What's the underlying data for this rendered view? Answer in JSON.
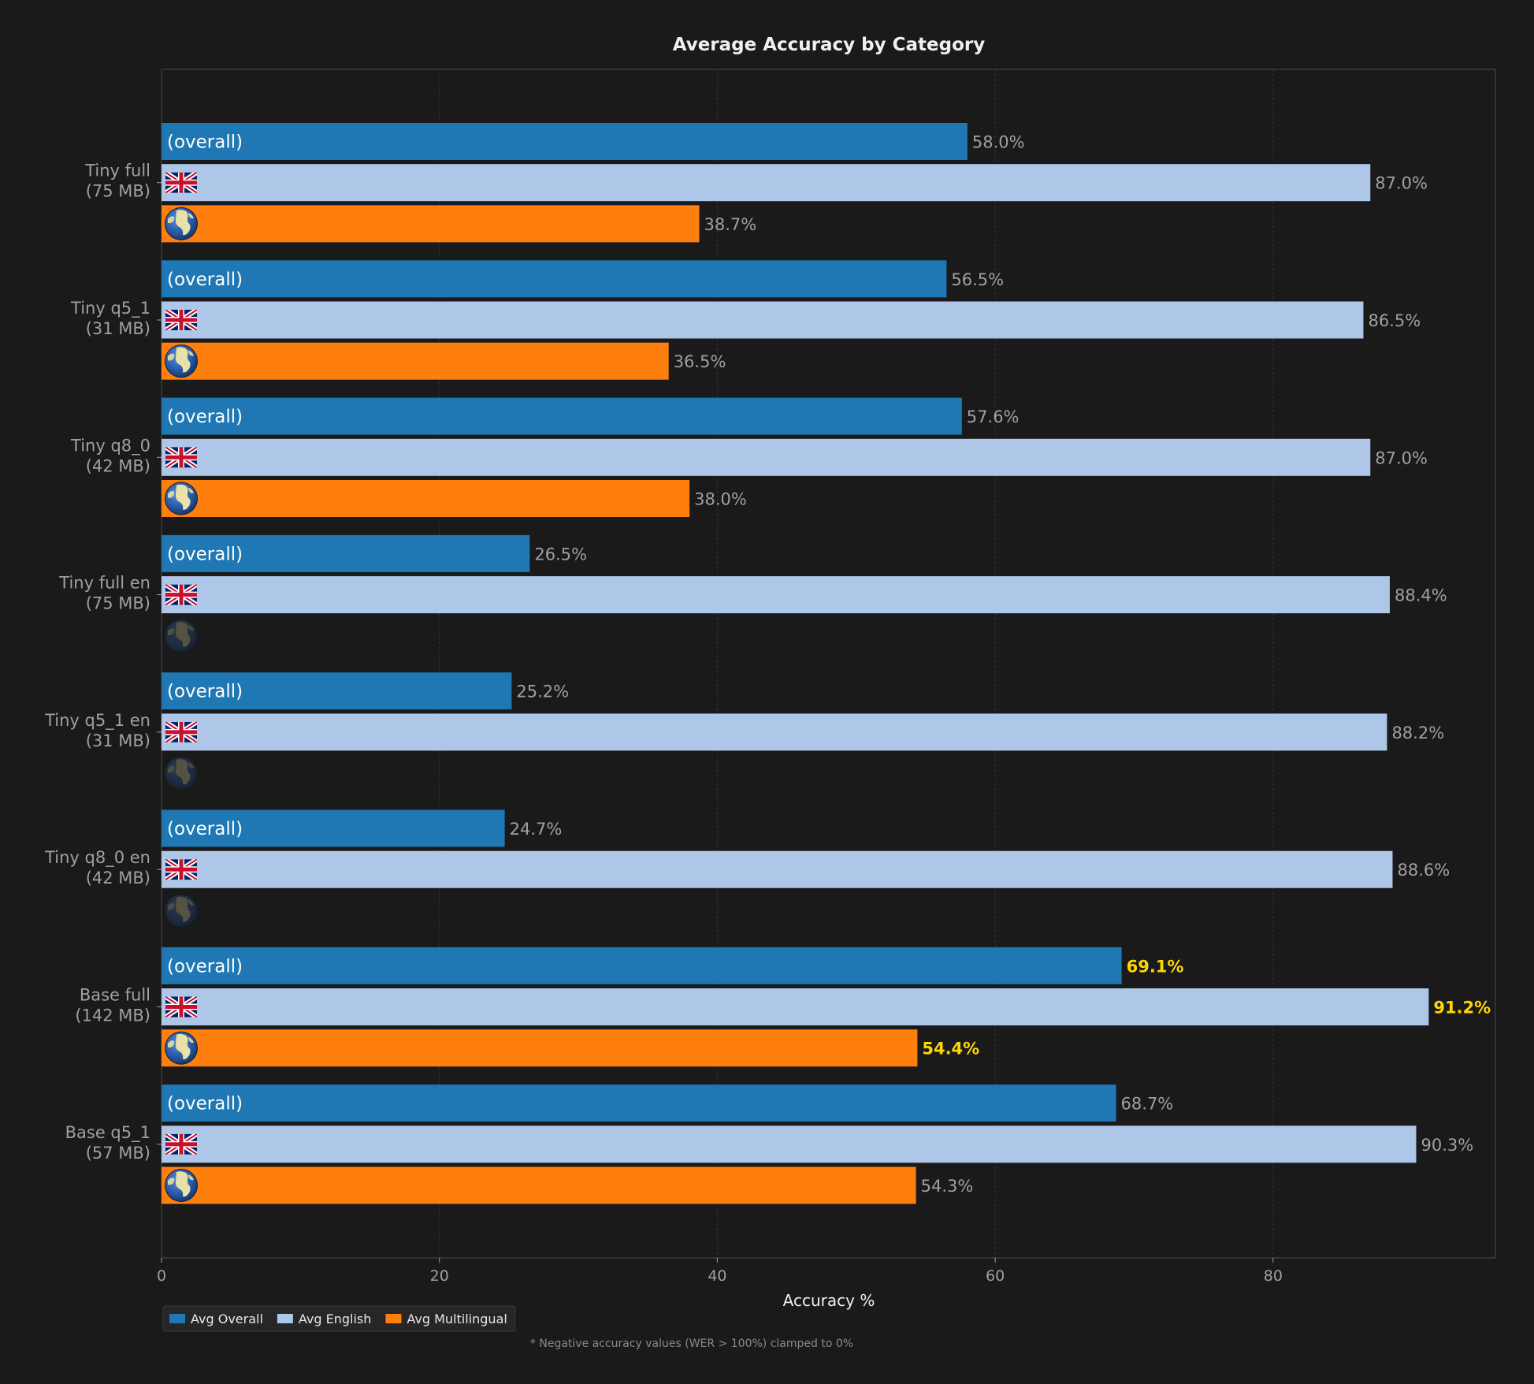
{
  "chart_data": {
    "type": "bar",
    "orientation": "horizontal",
    "title": "Average Accuracy by Category",
    "xlabel": "Accuracy %",
    "ylabel": "",
    "xlim": [
      0,
      96
    ],
    "xticks": [
      0,
      20,
      40,
      60,
      80
    ],
    "grid": true,
    "legend_position": "bottom-left",
    "overall_bar_label": "(overall)",
    "categories": [
      "Tiny full\n(75 MB)",
      "Tiny q5_1\n(31 MB)",
      "Tiny q8_0\n(42 MB)",
      "Tiny full en\n(75 MB)",
      "Tiny q5_1 en\n(31 MB)",
      "Tiny q8_0 en\n(42 MB)",
      "Base full\n(142 MB)",
      "Base q5_1\n(57 MB)"
    ],
    "series": [
      {
        "name": "Avg Overall",
        "color": "#1f77b4",
        "icon": "overall-label",
        "values": [
          58.0,
          56.5,
          57.6,
          26.5,
          25.2,
          24.7,
          69.1,
          68.7
        ]
      },
      {
        "name": "Avg English",
        "color": "#aec7e8",
        "icon": "uk-flag-icon",
        "values": [
          87.0,
          86.5,
          87.0,
          88.4,
          88.2,
          88.6,
          91.2,
          90.3
        ]
      },
      {
        "name": "Avg Multilingual",
        "color": "#ff7f0e",
        "icon": "globe-icon",
        "values": [
          38.7,
          36.5,
          38.0,
          null,
          null,
          null,
          54.4,
          54.3
        ]
      }
    ],
    "value_labels": [
      [
        "58.0%",
        "87.0%",
        "38.7%"
      ],
      [
        "56.5%",
        "86.5%",
        "36.5%"
      ],
      [
        "57.6%",
        "87.0%",
        "38.0%"
      ],
      [
        "26.5%",
        "88.4%",
        ""
      ],
      [
        "25.2%",
        "88.2%",
        ""
      ],
      [
        "24.7%",
        "88.6%",
        ""
      ],
      [
        "69.1%",
        "91.2%",
        "54.4%"
      ],
      [
        "68.7%",
        "90.3%",
        "54.3%"
      ]
    ],
    "best_highlight_color": "#FFD700",
    "best_values": [
      [
        6,
        0
      ],
      [
        6,
        1
      ],
      [
        6,
        2
      ]
    ],
    "footnote": "* Negative accuracy values (WER > 100%) clamped to 0%"
  },
  "colors": {
    "background": "#1a1a1a",
    "axes_edge": "#3a3a3a",
    "grid": "#333333",
    "text_muted": "#a0a0a0",
    "text_bright": "#f0f0f0"
  }
}
